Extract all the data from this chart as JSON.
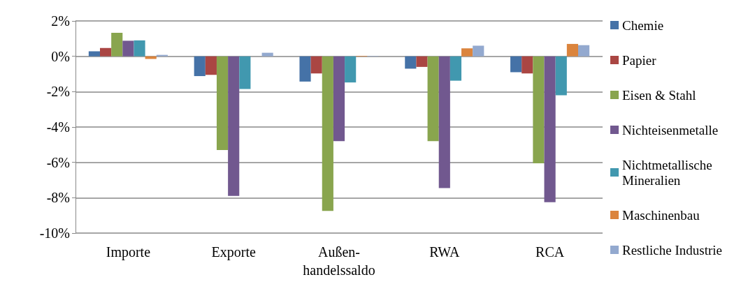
{
  "chart_data": {
    "type": "bar",
    "categories": [
      "Importe",
      "Exporte",
      "Außen-\nhandelssaldo",
      "RWA",
      "RCA"
    ],
    "series": [
      {
        "name": "Chemie",
        "color": "#4572a7",
        "values": [
          0.28,
          -1.12,
          -1.43,
          -0.7,
          -0.9
        ]
      },
      {
        "name": "Papier",
        "color": "#aa4643",
        "values": [
          0.47,
          -1.05,
          -0.97,
          -0.6,
          -0.97
        ]
      },
      {
        "name": "Eisen & Stahl",
        "color": "#89a54e",
        "values": [
          1.33,
          -5.3,
          -8.75,
          -4.8,
          -6.05
        ]
      },
      {
        "name": "Nichteisenmetalle",
        "color": "#71588f",
        "values": [
          0.88,
          -7.9,
          -4.8,
          -7.45,
          -8.25
        ]
      },
      {
        "name": "Nichtmetallische Mineralien",
        "color": "#4198af",
        "values": [
          0.9,
          -1.85,
          -1.48,
          -1.38,
          -2.2
        ]
      },
      {
        "name": "Maschinenbau",
        "color": "#db843d",
        "values": [
          -0.15,
          0,
          0.03,
          0.45,
          0.7
        ]
      },
      {
        "name": "Restliche Industrie",
        "color": "#93a9cf",
        "values": [
          0.08,
          0.2,
          0.02,
          0.6,
          0.63
        ]
      }
    ],
    "ylim": [
      -10,
      2
    ],
    "yticks": [
      {
        "value": -10,
        "label": "-10%"
      },
      {
        "value": -8,
        "label": "-8%"
      },
      {
        "value": -6,
        "label": "-6%"
      },
      {
        "value": -4,
        "label": "-4%"
      },
      {
        "value": -2,
        "label": "-2%"
      },
      {
        "value": 0,
        "label": "0%"
      },
      {
        "value": 2,
        "label": "2%"
      }
    ],
    "grid": "y",
    "legend": "right"
  }
}
